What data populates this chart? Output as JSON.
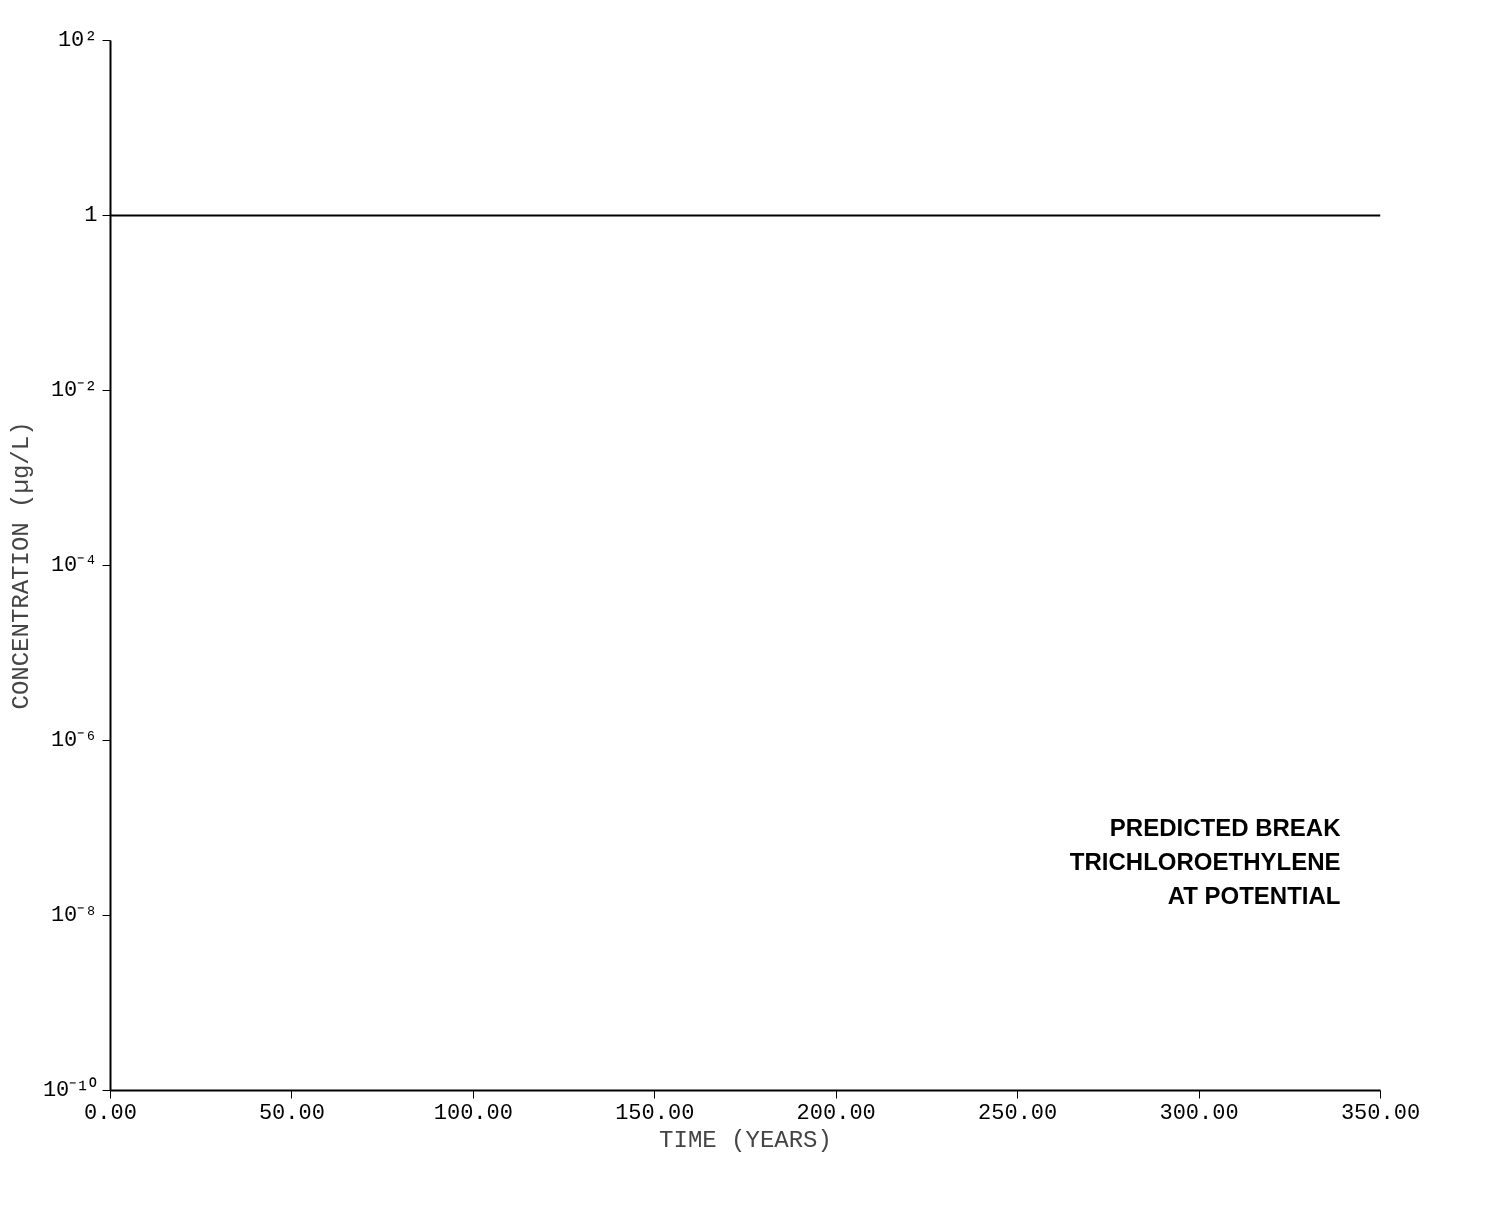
{
  "chart_data": {
    "type": "line",
    "xlabel": "TIME (YEARS)",
    "ylabel": "CONCENTRATION (µg/L)",
    "x": [
      0,
      350
    ],
    "series": [
      {
        "color": "#000000",
        "values": [
          1,
          1
        ]
      }
    ],
    "log": "y",
    "grid": false,
    "marker": "none",
    "line_style": "solid",
    "xlim": [
      0,
      350
    ],
    "xticks": [
      {
        "value": 0,
        "label": "0.00"
      },
      {
        "value": 50,
        "label": "50.00"
      },
      {
        "value": 100,
        "label": "100.00"
      },
      {
        "value": 150,
        "label": "150.00"
      },
      {
        "value": 200,
        "label": "200.00"
      },
      {
        "value": 250,
        "label": "250.00"
      },
      {
        "value": 300,
        "label": "300.00"
      },
      {
        "value": 350,
        "label": "350.00"
      }
    ],
    "ylim": [
      1e-10,
      100
    ],
    "yticks": [
      {
        "value": 1e-10,
        "label": "10⁻¹⁰"
      },
      {
        "value": 1e-08,
        "label": "10⁻⁸"
      },
      {
        "value": 1e-06,
        "label": "10⁻⁶"
      },
      {
        "value": 0.0001,
        "label": "10⁻⁴"
      },
      {
        "value": 0.01,
        "label": "10⁻²"
      },
      1,
      {
        "value": 100,
        "label": "10²"
      }
    ],
    "annotations": [
      "PREDICTED BREAK",
      "TRICHLOROETHYLENE",
      "AT POTENTIAL"
    ]
  }
}
